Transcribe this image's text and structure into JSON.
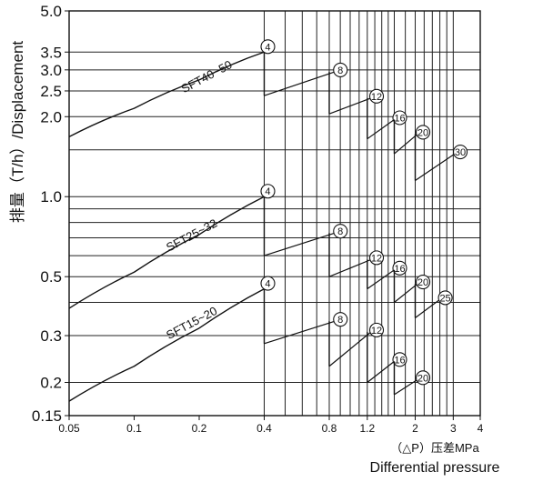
{
  "chart_data": {
    "type": "line",
    "xscale": "log",
    "yscale": "log",
    "xlim": [
      0.05,
      4
    ],
    "ylim": [
      0.15,
      5.0
    ],
    "x_ticks": [
      {
        "v": 0.05,
        "label": "0.05"
      },
      {
        "v": 0.1,
        "label": "0.1"
      },
      {
        "v": 0.2,
        "label": "0.2"
      },
      {
        "v": 0.4,
        "label": "0.4"
      },
      {
        "v": 0.8,
        "label": "0.8"
      },
      {
        "v": 1.2,
        "label": "1.2"
      },
      {
        "v": 2,
        "label": "2"
      },
      {
        "v": 3,
        "label": "3"
      },
      {
        "v": 4,
        "label": "4"
      }
    ],
    "y_ticks": [
      {
        "v": 0.15,
        "label": "0.15"
      },
      {
        "v": 0.2,
        "label": "0.2"
      },
      {
        "v": 0.3,
        "label": "0.3"
      },
      {
        "v": 0.5,
        "label": "0.5"
      },
      {
        "v": 1.0,
        "label": "1.0"
      },
      {
        "v": 2.0,
        "label": "2.0"
      },
      {
        "v": 2.5,
        "label": "2.5"
      },
      {
        "v": 3.0,
        "label": "3.0"
      },
      {
        "v": 3.5,
        "label": "3.5"
      },
      {
        "v": 5.0,
        "label": "5.0"
      }
    ],
    "grid_x": [
      0.4,
      0.5,
      0.6,
      0.7,
      0.8,
      0.9,
      1.0,
      1.1,
      1.2,
      1.3,
      1.4,
      1.5,
      1.6,
      1.8,
      2.0,
      2.2,
      2.4,
      2.6,
      2.8,
      3.0
    ],
    "grid_y": [
      0.2,
      0.3,
      0.4,
      0.5,
      0.6,
      0.7,
      0.8,
      0.9,
      1.0,
      1.5,
      2.0,
      2.5,
      3.0,
      3.5
    ],
    "ylabel": "排量（T/h）/Displacement",
    "xlabel_unit": "（△P）压差MPa",
    "xlabel": "Differential pressure",
    "series": [
      {
        "name": "SFT40~50",
        "curve": [
          [
            0.05,
            1.68
          ],
          [
            0.1,
            2.15
          ],
          [
            0.2,
            2.75
          ],
          [
            0.4,
            3.5
          ]
        ],
        "segments": [
          {
            "x0": 0.4,
            "y0": 2.4,
            "x1": 0.85,
            "y1": 2.95,
            "drop": 0.0,
            "marker": "8"
          },
          {
            "x0": 0.8,
            "y0": 2.05,
            "x1": 1.25,
            "y1": 2.35,
            "marker": "12"
          },
          {
            "x0": 1.2,
            "y0": 1.65,
            "x1": 1.6,
            "y1": 1.95,
            "marker": "16"
          },
          {
            "x0": 1.6,
            "y0": 1.45,
            "x1": 2.05,
            "y1": 1.72,
            "marker": "20"
          },
          {
            "x0": 2.0,
            "y0": 1.15,
            "x1": 3.05,
            "y1": 1.45,
            "marker": "30"
          }
        ],
        "label_at": [
          0.17,
          2.45
        ],
        "start_marker": "4"
      },
      {
        "name": "SFT25~32",
        "curve": [
          [
            0.05,
            0.38
          ],
          [
            0.1,
            0.52
          ],
          [
            0.2,
            0.72
          ],
          [
            0.4,
            1.0
          ]
        ],
        "segments": [
          {
            "x0": 0.4,
            "y0": 0.6,
            "x1": 0.85,
            "y1": 0.73,
            "marker": "8"
          },
          {
            "x0": 0.8,
            "y0": 0.5,
            "x1": 1.25,
            "y1": 0.58,
            "marker": "12"
          },
          {
            "x0": 1.2,
            "y0": 0.45,
            "x1": 1.6,
            "y1": 0.53,
            "marker": "16"
          },
          {
            "x0": 1.6,
            "y0": 0.4,
            "x1": 2.05,
            "y1": 0.47,
            "marker": "20"
          },
          {
            "x0": 2.0,
            "y0": 0.35,
            "x1": 2.6,
            "y1": 0.41,
            "marker": "25"
          }
        ],
        "label_at": [
          0.145,
          0.62
        ],
        "start_marker": "4"
      },
      {
        "name": "SFT15~20",
        "curve": [
          [
            0.05,
            0.17
          ],
          [
            0.1,
            0.23
          ],
          [
            0.2,
            0.32
          ],
          [
            0.4,
            0.45
          ]
        ],
        "segments": [
          {
            "x0": 0.4,
            "y0": 0.28,
            "x1": 0.85,
            "y1": 0.34,
            "marker": "8"
          },
          {
            "x0": 0.8,
            "y0": 0.23,
            "x1": 1.25,
            "y1": 0.31,
            "marker": "12"
          },
          {
            "x0": 1.2,
            "y0": 0.2,
            "x1": 1.6,
            "y1": 0.24,
            "marker": "16"
          },
          {
            "x0": 1.6,
            "y0": 0.18,
            "x1": 2.05,
            "y1": 0.205,
            "marker": "20"
          }
        ],
        "label_at": [
          0.145,
          0.29
        ],
        "start_marker": "4"
      }
    ]
  }
}
